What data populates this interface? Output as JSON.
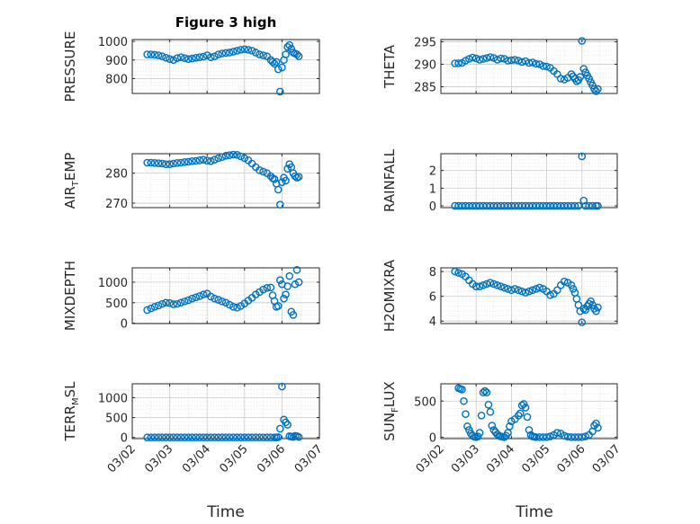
{
  "figure_title": "Figure 3 high",
  "chart_data": [
    {
      "type": "scatter",
      "title": "Figure 3 high",
      "ylabel": "PRESSURE",
      "yticks": [
        "1000",
        "900",
        "800"
      ],
      "ylim": [
        720,
        1010
      ],
      "series": [
        {
          "x": [
            2.4,
            2.5,
            2.6,
            2.7,
            2.8,
            2.9,
            3.0,
            3.1,
            3.2,
            3.3,
            3.4,
            3.5,
            3.6,
            3.7,
            3.8,
            3.9,
            4.0,
            4.1,
            4.2,
            4.3,
            4.4,
            4.5,
            4.6,
            4.7,
            4.8,
            4.9,
            5.0,
            5.1,
            5.2,
            5.3,
            5.4,
            5.5,
            5.6,
            5.7,
            5.75,
            5.8,
            5.85,
            5.9,
            5.95,
            6.0,
            6.05,
            6.1,
            6.15,
            6.2,
            6.25,
            6.3,
            6.35,
            6.4,
            6.45
          ],
          "y": [
            930,
            930,
            928,
            925,
            920,
            912,
            905,
            900,
            910,
            915,
            910,
            905,
            908,
            912,
            915,
            918,
            925,
            915,
            920,
            930,
            935,
            938,
            940,
            945,
            950,
            955,
            958,
            955,
            950,
            940,
            930,
            925,
            920,
            900,
            890,
            880,
            890,
            850,
            730,
            860,
            900,
            930,
            970,
            980,
            960,
            940,
            935,
            930,
            920
          ]
        }
      ]
    },
    {
      "type": "scatter",
      "ylabel": "THETA",
      "yticks": [
        "295",
        "290",
        "285"
      ],
      "ylim": [
        283.5,
        295.5
      ],
      "series": [
        {
          "x": [
            2.4,
            2.5,
            2.6,
            2.7,
            2.8,
            2.9,
            3.0,
            3.1,
            3.2,
            3.3,
            3.4,
            3.5,
            3.6,
            3.7,
            3.8,
            3.9,
            4.0,
            4.1,
            4.2,
            4.3,
            4.4,
            4.5,
            4.6,
            4.7,
            4.8,
            4.9,
            5.0,
            5.1,
            5.2,
            5.3,
            5.4,
            5.5,
            5.6,
            5.7,
            5.75,
            5.8,
            5.85,
            5.9,
            5.95,
            6.0,
            6.05,
            6.1,
            6.15,
            6.2,
            6.25,
            6.3,
            6.35,
            6.4,
            6.45
          ],
          "y": [
            290.2,
            290.2,
            290.3,
            290.8,
            291.2,
            291.5,
            291.3,
            291.0,
            291.2,
            291.4,
            291.6,
            291.4,
            291.0,
            291.3,
            291.2,
            290.8,
            290.9,
            291.0,
            290.8,
            290.5,
            290.7,
            290.3,
            290.4,
            290.1,
            290.0,
            289.6,
            289.5,
            289.2,
            288.5,
            287.8,
            286.8,
            286.6,
            287.0,
            287.8,
            287.3,
            286.8,
            286.2,
            286.5,
            287.2,
            295.2,
            289.0,
            288.2,
            287.5,
            286.8,
            286.0,
            285.3,
            284.5,
            284.0,
            284.5
          ]
        }
      ]
    },
    {
      "type": "scatter",
      "ylabel": "AIR_TEMP",
      "yticks": [
        "280",
        "270"
      ],
      "ylim": [
        268.5,
        286.5
      ],
      "series": [
        {
          "x": [
            2.4,
            2.5,
            2.6,
            2.7,
            2.8,
            2.9,
            3.0,
            3.1,
            3.2,
            3.3,
            3.4,
            3.5,
            3.6,
            3.7,
            3.8,
            3.9,
            4.0,
            4.1,
            4.2,
            4.3,
            4.4,
            4.5,
            4.6,
            4.7,
            4.8,
            4.9,
            5.0,
            5.1,
            5.2,
            5.3,
            5.4,
            5.5,
            5.6,
            5.7,
            5.75,
            5.8,
            5.85,
            5.9,
            5.95,
            6.0,
            6.05,
            6.1,
            6.15,
            6.2,
            6.25,
            6.3,
            6.35,
            6.4,
            6.45
          ],
          "y": [
            283.5,
            283.5,
            283.4,
            283.3,
            283.2,
            283.0,
            283.0,
            283.2,
            283.4,
            283.5,
            283.7,
            283.8,
            284.0,
            284.1,
            284.3,
            284.5,
            284.2,
            284.0,
            284.5,
            285.0,
            285.4,
            285.8,
            286.0,
            286.2,
            286.1,
            285.6,
            285.0,
            284.3,
            283.2,
            282.0,
            281.0,
            280.5,
            280.0,
            279.0,
            278.3,
            278.0,
            276.5,
            274.5,
            269.5,
            277.0,
            278.5,
            277.5,
            281.5,
            283.0,
            282.0,
            280.0,
            279.0,
            278.5,
            278.8
          ]
        }
      ]
    },
    {
      "type": "scatter",
      "ylabel": "RAINFALL",
      "yticks": [
        "2",
        "1",
        "0"
      ],
      "ylim": [
        -0.1,
        2.95
      ],
      "series": [
        {
          "x": [
            2.4,
            2.5,
            2.6,
            2.7,
            2.8,
            2.9,
            3.0,
            3.1,
            3.2,
            3.3,
            3.4,
            3.5,
            3.6,
            3.7,
            3.8,
            3.9,
            4.0,
            4.1,
            4.2,
            4.3,
            4.4,
            4.5,
            4.6,
            4.7,
            4.8,
            4.9,
            5.0,
            5.1,
            5.2,
            5.3,
            5.4,
            5.5,
            5.6,
            5.7,
            5.8,
            5.9,
            6.0,
            6.05,
            6.1,
            6.2,
            6.3,
            6.4,
            6.45
          ],
          "y": [
            0,
            0,
            0,
            0,
            0,
            0,
            0,
            0,
            0,
            0,
            0,
            0,
            0,
            0,
            0,
            0,
            0,
            0,
            0,
            0,
            0,
            0,
            0,
            0,
            0,
            0,
            0,
            0,
            0,
            0,
            0,
            0,
            0,
            0,
            0,
            0,
            2.8,
            0.3,
            0,
            0,
            0,
            0,
            0
          ]
        }
      ]
    },
    {
      "type": "scatter",
      "ylabel": "MIXDEPTH",
      "yticks": [
        "1000",
        "500",
        "0"
      ],
      "ylim": [
        -10,
        1350
      ],
      "series": [
        {
          "x": [
            2.4,
            2.5,
            2.6,
            2.7,
            2.8,
            2.9,
            3.0,
            3.1,
            3.2,
            3.3,
            3.4,
            3.5,
            3.6,
            3.7,
            3.8,
            3.9,
            4.0,
            4.1,
            4.2,
            4.3,
            4.4,
            4.5,
            4.6,
            4.7,
            4.8,
            4.9,
            5.0,
            5.1,
            5.2,
            5.3,
            5.4,
            5.5,
            5.6,
            5.7,
            5.75,
            5.8,
            5.85,
            5.9,
            5.95,
            6.0,
            6.05,
            6.1,
            6.15,
            6.2,
            6.25,
            6.3,
            6.35,
            6.4,
            6.45
          ],
          "y": [
            320,
            360,
            400,
            430,
            470,
            500,
            490,
            460,
            470,
            500,
            530,
            560,
            600,
            630,
            660,
            700,
            720,
            650,
            600,
            570,
            530,
            500,
            450,
            400,
            380,
            420,
            480,
            550,
            620,
            700,
            760,
            820,
            860,
            870,
            680,
            540,
            400,
            420,
            1050,
            950,
            600,
            700,
            900,
            1150,
            280,
            200,
            950,
            1300,
            1000
          ]
        }
      ]
    },
    {
      "type": "scatter",
      "ylabel": "H2OMIXRA",
      "yticks": [
        "8",
        "6",
        "4"
      ],
      "ylim": [
        3.8,
        8.3
      ],
      "series": [
        {
          "x": [
            2.4,
            2.5,
            2.6,
            2.7,
            2.8,
            2.9,
            3.0,
            3.1,
            3.2,
            3.3,
            3.4,
            3.5,
            3.6,
            3.7,
            3.8,
            3.9,
            4.0,
            4.1,
            4.2,
            4.3,
            4.4,
            4.5,
            4.6,
            4.7,
            4.8,
            4.9,
            5.0,
            5.1,
            5.2,
            5.3,
            5.4,
            5.5,
            5.6,
            5.7,
            5.75,
            5.8,
            5.85,
            5.9,
            5.95,
            6.0,
            6.05,
            6.1,
            6.15,
            6.2,
            6.25,
            6.3,
            6.35,
            6.4,
            6.45
          ],
          "y": [
            8.0,
            7.9,
            7.8,
            7.6,
            7.3,
            7.0,
            6.8,
            6.8,
            6.9,
            7.0,
            7.1,
            7.0,
            6.9,
            6.8,
            6.7,
            6.6,
            6.5,
            6.6,
            6.5,
            6.4,
            6.3,
            6.4,
            6.5,
            6.6,
            6.7,
            6.6,
            6.4,
            6.1,
            6.2,
            6.5,
            6.9,
            7.2,
            7.1,
            6.9,
            6.6,
            6.3,
            5.8,
            5.3,
            4.8,
            3.9,
            5.0,
            4.9,
            5.2,
            5.4,
            5.6,
            5.3,
            5.0,
            4.8,
            5.1
          ]
        }
      ]
    },
    {
      "type": "scatter",
      "ylabel": "TERR_MSL",
      "yticks": [
        "1000",
        "500",
        "0"
      ],
      "ylim": [
        -30,
        1350
      ],
      "series": [
        {
          "x": [
            2.4,
            2.5,
            2.6,
            2.7,
            2.8,
            2.9,
            3.0,
            3.1,
            3.2,
            3.3,
            3.4,
            3.5,
            3.6,
            3.7,
            3.8,
            3.9,
            4.0,
            4.1,
            4.2,
            4.3,
            4.4,
            4.5,
            4.6,
            4.7,
            4.8,
            4.9,
            5.0,
            5.1,
            5.2,
            5.3,
            5.4,
            5.5,
            5.6,
            5.7,
            5.8,
            5.85,
            5.9,
            5.95,
            6.0,
            6.05,
            6.1,
            6.15,
            6.2,
            6.25,
            6.3,
            6.35,
            6.4,
            6.45
          ],
          "y": [
            0,
            0,
            0,
            0,
            0,
            0,
            0,
            0,
            0,
            0,
            0,
            0,
            0,
            0,
            0,
            0,
            0,
            0,
            0,
            0,
            0,
            0,
            0,
            0,
            0,
            0,
            0,
            0,
            0,
            0,
            0,
            0,
            0,
            0,
            0,
            0,
            5,
            220,
            1280,
            450,
            380,
            320,
            30,
            20,
            10,
            40,
            30,
            10
          ]
        }
      ]
    },
    {
      "type": "scatter",
      "ylabel": "SUN_FLUX",
      "yticks": [
        "500",
        "0"
      ],
      "ylim": [
        -20,
        740
      ],
      "series": [
        {
          "x": [
            2.5,
            2.55,
            2.6,
            2.65,
            2.7,
            2.75,
            2.8,
            2.85,
            2.9,
            2.95,
            3.0,
            3.05,
            3.1,
            3.15,
            3.2,
            3.25,
            3.3,
            3.35,
            3.4,
            3.45,
            3.5,
            3.55,
            3.6,
            3.65,
            3.7,
            3.75,
            3.8,
            3.85,
            3.9,
            3.95,
            4.0,
            4.1,
            4.2,
            4.25,
            4.3,
            4.35,
            4.4,
            4.45,
            4.5,
            4.55,
            4.6,
            4.65,
            4.7,
            4.8,
            4.9,
            5.0,
            5.1,
            5.2,
            5.3,
            5.4,
            5.5,
            5.6,
            5.7,
            5.8,
            5.9,
            6.0,
            6.1,
            6.2,
            6.3,
            6.35,
            6.4,
            6.45
          ],
          "y": [
            680,
            670,
            660,
            500,
            320,
            150,
            100,
            50,
            20,
            5,
            0,
            10,
            60,
            300,
            620,
            640,
            620,
            450,
            350,
            160,
            100,
            70,
            40,
            20,
            10,
            5,
            0,
            20,
            60,
            150,
            220,
            250,
            300,
            330,
            440,
            460,
            410,
            280,
            100,
            30,
            10,
            5,
            0,
            0,
            0,
            0,
            10,
            30,
            60,
            50,
            20,
            5,
            0,
            0,
            0,
            0,
            10,
            30,
            80,
            160,
            190,
            130
          ]
        }
      ]
    }
  ],
  "xaxis": {
    "xlabel": "Time",
    "ticks": [
      "03/02",
      "03/03",
      "03/04",
      "03/05",
      "03/06",
      "03/07"
    ],
    "xlim": [
      2.0,
      7.0
    ]
  },
  "styles": {
    "marker_color": "#0072BD",
    "grid_color": "#d9d9d9",
    "axis_color": "#262626"
  }
}
